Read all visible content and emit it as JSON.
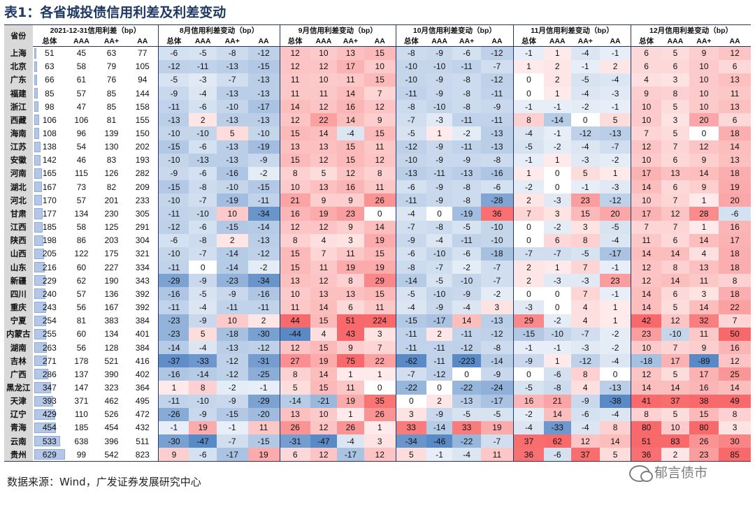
{
  "title": "表1：各省城投债信用利差及利差变动",
  "header": {
    "province": "省份",
    "groups": [
      "2021-12-31信用利差（bp）",
      "8月信用利差变动（bp）",
      "9月信用利差变动（bp）",
      "10月信用利差变动（bp）",
      "11月信用利差变动（bp）",
      "12月信用利差变动（bp）"
    ],
    "subs": [
      "总体",
      "AAA",
      "AA+",
      "AA"
    ]
  },
  "rows": [
    {
      "p": "上海",
      "v": [
        51,
        45,
        63,
        77,
        -6,
        -5,
        -8,
        -12,
        12,
        10,
        13,
        15,
        -8,
        -9,
        -6,
        -12,
        -1,
        1,
        -4,
        -1,
        6,
        5,
        9,
        12
      ]
    },
    {
      "p": "北京",
      "v": [
        63,
        58,
        79,
        105,
        -12,
        -11,
        -13,
        -15,
        12,
        12,
        17,
        10,
        -10,
        -10,
        -11,
        -7,
        1,
        2,
        -1,
        2,
        6,
        6,
        10,
        6
      ]
    },
    {
      "p": "广东",
      "v": [
        66,
        61,
        76,
        94,
        -5,
        -3,
        -7,
        -13,
        11,
        10,
        11,
        15,
        -10,
        -9,
        -8,
        -12,
        0,
        2,
        -5,
        -4,
        4,
        3,
        10,
        13
      ]
    },
    {
      "p": "福建",
      "v": [
        85,
        57,
        85,
        144,
        -9,
        -4,
        -13,
        -13,
        11,
        11,
        14,
        7,
        -11,
        -9,
        -8,
        -11,
        0,
        1,
        -4,
        -3,
        9,
        8,
        10,
        11
      ]
    },
    {
      "p": "浙江",
      "v": [
        98,
        47,
        85,
        158,
        -11,
        -6,
        -10,
        -17,
        14,
        12,
        16,
        12,
        -8,
        -10,
        -8,
        -9,
        -1,
        -1,
        -2,
        -1,
        10,
        5,
        10,
        13
      ]
    },
    {
      "p": "西藏",
      "v": [
        106,
        106,
        81,
        155,
        -13,
        2,
        -13,
        -13,
        12,
        22,
        14,
        9,
        -7,
        -3,
        -11,
        -11,
        8,
        -14,
        0,
        5,
        10,
        3,
        20,
        6
      ]
    },
    {
      "p": "海南",
      "v": [
        108,
        96,
        139,
        150,
        -10,
        -10,
        5,
        -10,
        15,
        14,
        -4,
        15,
        -5,
        1,
        -2,
        -13,
        -4,
        -1,
        -12,
        -13,
        7,
        5,
        0,
        18
      ]
    },
    {
      "p": "江苏",
      "v": [
        138,
        54,
        130,
        202,
        -15,
        -6,
        -13,
        -19,
        13,
        13,
        15,
        11,
        -12,
        -9,
        -11,
        -13,
        -5,
        -2,
        -4,
        -7,
        12,
        7,
        12,
        14
      ]
    },
    {
      "p": "安徽",
      "v": [
        142,
        46,
        83,
        193,
        -10,
        -13,
        -13,
        -9,
        15,
        12,
        15,
        12,
        -10,
        -9,
        -9,
        -8,
        -1,
        1,
        -3,
        -2,
        10,
        6,
        9,
        13
      ]
    },
    {
      "p": "河南",
      "v": [
        165,
        115,
        126,
        282,
        -9,
        -6,
        -16,
        -2,
        8,
        5,
        12,
        8,
        -13,
        -11,
        -13,
        -16,
        1,
        0,
        5,
        1,
        17,
        13,
        14,
        18
      ]
    },
    {
      "p": "湖北",
      "v": [
        167,
        73,
        82,
        209,
        -15,
        -8,
        -10,
        -15,
        10,
        13,
        16,
        11,
        -6,
        -9,
        -8,
        -6,
        -2,
        0,
        -1,
        -3,
        14,
        6,
        9,
        19
      ]
    },
    {
      "p": "河北",
      "v": [
        170,
        57,
        201,
        233,
        -10,
        -7,
        -19,
        -11,
        21,
        9,
        9,
        26,
        -11,
        -9,
        -8,
        -28,
        2,
        -3,
        23,
        -12,
        10,
        7,
        1,
        20
      ]
    },
    {
      "p": "甘肃",
      "v": [
        177,
        134,
        230,
        305,
        -11,
        -10,
        10,
        -34,
        16,
        19,
        23,
        0,
        -4,
        0,
        -19,
        36,
        7,
        3,
        15,
        20,
        17,
        12,
        28,
        -6
      ]
    },
    {
      "p": "江西",
      "v": [
        185,
        58,
        125,
        291,
        -12,
        -6,
        -15,
        -14,
        12,
        12,
        9,
        14,
        -7,
        -8,
        -5,
        -10,
        0,
        -2,
        3,
        -5,
        7,
        7,
        1,
        16
      ]
    },
    {
      "p": "陕西",
      "v": [
        198,
        86,
        203,
        304,
        -6,
        -8,
        2,
        -13,
        8,
        4,
        3,
        19,
        -9,
        -4,
        -11,
        -10,
        0,
        6,
        8,
        -4,
        11,
        6,
        14,
        17
      ]
    },
    {
      "p": "山西",
      "v": [
        205,
        122,
        175,
        321,
        -10,
        -7,
        -14,
        -12,
        15,
        7,
        11,
        15,
        -6,
        -10,
        -6,
        -18,
        -7,
        -7,
        -5,
        -17,
        14,
        14,
        4,
        18
      ]
    },
    {
      "p": "山东",
      "v": [
        216,
        60,
        227,
        334,
        -11,
        0,
        -14,
        -2,
        15,
        11,
        19,
        19,
        -8,
        -7,
        -2,
        -7,
        2,
        1,
        7,
        -1,
        12,
        8,
        13,
        18
      ]
    },
    {
      "p": "新疆",
      "v": [
        229,
        62,
        190,
        343,
        -29,
        -9,
        -23,
        -34,
        13,
        12,
        8,
        29,
        -14,
        -5,
        -10,
        -7,
        2,
        -3,
        -3,
        23,
        12,
        14,
        11,
        8
      ]
    },
    {
      "p": "四川",
      "v": [
        240,
        57,
        136,
        392,
        -16,
        -5,
        -9,
        -16,
        10,
        13,
        13,
        15,
        -5,
        -10,
        -9,
        -2,
        0,
        0,
        7,
        -1,
        14,
        6,
        3,
        18
      ]
    },
    {
      "p": "重庆",
      "v": [
        243,
        56,
        167,
        392,
        -11,
        -4,
        -11,
        -11,
        11,
        14,
        6,
        11,
        -4,
        -9,
        -4,
        3,
        -3,
        0,
        4,
        1,
        14,
        5,
        14,
        22
      ]
    },
    {
      "p": "宁夏",
      "v": [
        254,
        81,
        383,
        384,
        -23,
        -9,
        10,
        2,
        44,
        15,
        51,
        224,
        -15,
        -17,
        14,
        -13,
        29,
        -2,
        4,
        1,
        42,
        12,
        32,
        7
      ]
    },
    {
      "p": "内蒙古",
      "v": [
        255,
        60,
        134,
        401,
        -23,
        5,
        -18,
        -30,
        -44,
        4,
        43,
        3,
        -11,
        2,
        -11,
        -12,
        -15,
        -10,
        -7,
        -2,
        23,
        -10,
        11,
        50
      ]
    },
    {
      "p": "湖南",
      "v": [
        263,
        56,
        128,
        384,
        -14,
        -4,
        -13,
        -12,
        12,
        15,
        9,
        7,
        -11,
        -11,
        -12,
        -8,
        -1,
        -1,
        -3,
        -2,
        10,
        7,
        9,
        16
      ]
    },
    {
      "p": "吉林",
      "v": [
        271,
        178,
        521,
        416,
        -37,
        -33,
        -12,
        -31,
        27,
        19,
        75,
        22,
        -62,
        -11,
        -223,
        -14,
        -9,
        1,
        -12,
        -4,
        -18,
        17,
        -89,
        12
      ]
    },
    {
      "p": "广西",
      "v": [
        286,
        137,
        390,
        402,
        -16,
        -14,
        -12,
        -25,
        8,
        14,
        1,
        1,
        -7,
        -12,
        0,
        -9,
        0,
        -6,
        8,
        0,
        12,
        5,
        17,
        25
      ]
    },
    {
      "p": "黑龙江",
      "v": [
        347,
        147,
        323,
        364,
        1,
        8,
        -2,
        -1,
        5,
        15,
        11,
        0,
        -22,
        0,
        -22,
        -24,
        -5,
        -8,
        4,
        -13,
        14,
        14,
        16,
        14
      ]
    },
    {
      "p": "天津",
      "v": [
        393,
        371,
        462,
        495,
        -11,
        -10,
        -9,
        -29,
        -14,
        -21,
        19,
        35,
        0,
        2,
        -13,
        -17,
        16,
        21,
        -9,
        -38,
        41,
        37,
        38,
        49
      ]
    },
    {
      "p": "辽宁",
      "v": [
        429,
        110,
        526,
        472,
        -26,
        -9,
        -15,
        -20,
        13,
        10,
        1,
        26,
        3,
        -9,
        -5,
        -5,
        -2,
        14,
        -6,
        -4,
        8,
        5,
        15,
        8
      ]
    },
    {
      "p": "青海",
      "v": [
        454,
        185,
        454,
        432,
        -1,
        19,
        -1,
        11,
        26,
        12,
        26,
        1,
        33,
        -14,
        33,
        19,
        -4,
        -33,
        -4,
        8,
        80,
        10,
        80,
        3
      ]
    },
    {
      "p": "云南",
      "v": [
        533,
        638,
        396,
        511,
        -30,
        -47,
        -7,
        -15,
        -31,
        -47,
        -4,
        3,
        -34,
        -46,
        -22,
        -7,
        37,
        62,
        12,
        14,
        51,
        83,
        26,
        30
      ]
    },
    {
      "p": "贵州",
      "v": [
        629,
        99,
        542,
        823,
        9,
        -6,
        -17,
        19,
        6,
        12,
        -17,
        12,
        5,
        -1,
        -4,
        11,
        36,
        -6,
        37,
        5,
        36,
        2,
        23,
        85
      ]
    }
  ],
  "footer": "数据来源：Wind，广发证券发展研究中心",
  "watermark": "郁言债市",
  "colors": {
    "pos": "#f8696b",
    "neg": "#5a8ac6",
    "bar": "#b4c7e7",
    "header_line": "#1f3864",
    "title": "#1f3864"
  }
}
